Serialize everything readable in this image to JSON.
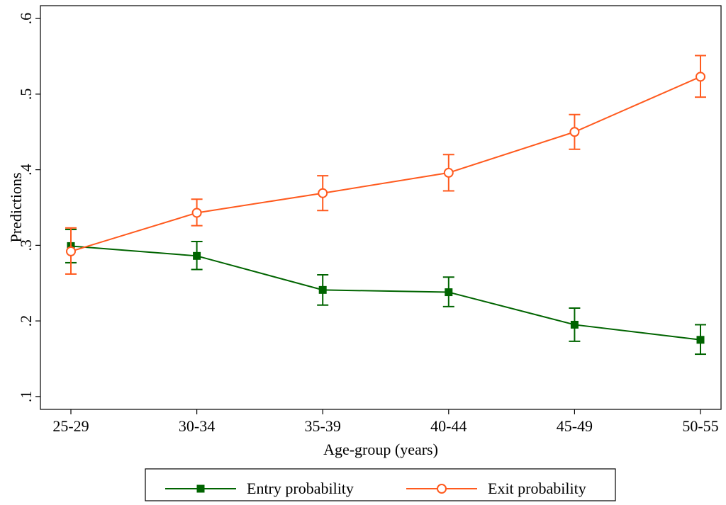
{
  "chart_data": {
    "type": "line",
    "title": "",
    "xlabel": "Age-group (years)",
    "ylabel": "Predictions",
    "categories": [
      "25-29",
      "30-34",
      "35-39",
      "40-44",
      "45-49",
      "50-55"
    ],
    "y_ticks": [
      ".1",
      ".2",
      ".3",
      ".4",
      ".5",
      ".6"
    ],
    "y_tick_values": [
      0.1,
      0.2,
      0.3,
      0.4,
      0.5,
      0.6
    ],
    "ylim": [
      0.083,
      0.617
    ],
    "grid": false,
    "legend_position": "bottom",
    "series": [
      {
        "name": "Entry probability",
        "color": "#006400",
        "marker": "filled-square",
        "values": [
          0.299,
          0.286,
          0.241,
          0.238,
          0.195,
          0.175
        ],
        "ci_low": [
          0.277,
          0.268,
          0.221,
          0.219,
          0.173,
          0.156
        ],
        "ci_high": [
          0.321,
          0.305,
          0.261,
          0.258,
          0.217,
          0.195
        ]
      },
      {
        "name": "Exit probability",
        "color": "#ff5a1e",
        "marker": "hollow-circle",
        "values": [
          0.292,
          0.343,
          0.369,
          0.396,
          0.45,
          0.523
        ],
        "ci_low": [
          0.262,
          0.326,
          0.346,
          0.372,
          0.427,
          0.496
        ],
        "ci_high": [
          0.323,
          0.361,
          0.392,
          0.42,
          0.473,
          0.551
        ]
      }
    ]
  }
}
